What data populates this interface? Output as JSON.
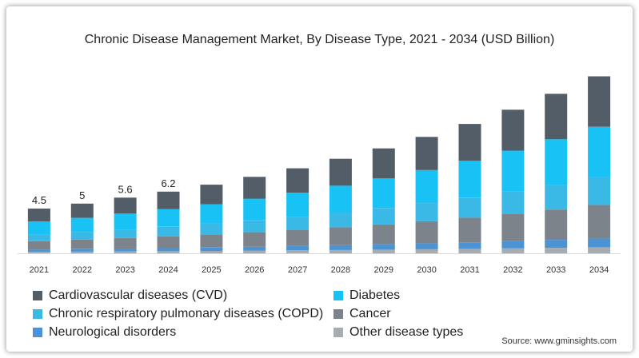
{
  "chart_data": {
    "type": "bar",
    "stacked": true,
    "title": "Chronic Disease Management Market, By Disease Type, 2021 - 2034 (USD Billion)",
    "categories": [
      "2021",
      "2022",
      "2023",
      "2024",
      "2025",
      "2026",
      "2027",
      "2028",
      "2029",
      "2030",
      "2031",
      "2032",
      "2033",
      "2034"
    ],
    "series": [
      {
        "name": "Other disease types",
        "color": "#a7acb1",
        "values": [
          0.15,
          0.17,
          0.19,
          0.21,
          0.24,
          0.27,
          0.3,
          0.33,
          0.37,
          0.41,
          0.45,
          0.5,
          0.55,
          0.61
        ]
      },
      {
        "name": "Neurological disorders",
        "color": "#4b93d3",
        "values": [
          0.22,
          0.25,
          0.28,
          0.31,
          0.35,
          0.39,
          0.44,
          0.49,
          0.54,
          0.6,
          0.66,
          0.73,
          0.81,
          0.89
        ]
      },
      {
        "name": "Cancer",
        "color": "#7d838b",
        "values": [
          0.85,
          0.95,
          1.06,
          1.18,
          1.31,
          1.46,
          1.62,
          1.8,
          2.0,
          2.22,
          2.47,
          2.74,
          3.04,
          3.37
        ]
      },
      {
        "name": "Chronic respiratory pulmonary diseases (COPD)",
        "color": "#3ab9e6",
        "values": [
          0.7,
          0.78,
          0.87,
          0.97,
          1.08,
          1.2,
          1.33,
          1.48,
          1.64,
          1.82,
          2.02,
          2.25,
          2.5,
          2.77
        ]
      },
      {
        "name": "Diabetes",
        "color": "#18c2f5",
        "values": [
          1.28,
          1.42,
          1.59,
          1.76,
          1.96,
          2.18,
          2.42,
          2.69,
          2.99,
          3.32,
          3.69,
          4.1,
          4.56,
          5.07
        ]
      },
      {
        "name": "Cardiovascular diseases (CVD)",
        "color": "#535d68",
        "values": [
          1.3,
          1.43,
          1.61,
          1.77,
          1.96,
          2.19,
          2.44,
          2.71,
          3.01,
          3.33,
          3.71,
          4.11,
          4.57,
          5.08
        ]
      }
    ],
    "value_labels": [
      {
        "category": "2021",
        "text": "4.5"
      },
      {
        "category": "2022",
        "text": "5"
      },
      {
        "category": "2023",
        "text": "5.6"
      },
      {
        "category": "2024",
        "text": "6.2"
      }
    ],
    "ylim": [
      0,
      20
    ],
    "grid": false,
    "legend_position": "bottom"
  },
  "legend": {
    "items": [
      {
        "label": "Cardiovascular diseases (CVD)",
        "color": "#535d68"
      },
      {
        "label": "Diabetes",
        "color": "#18c2f5"
      },
      {
        "label": "Chronic respiratory pulmonary diseases (COPD)",
        "color": "#3ab9e6"
      },
      {
        "label": "Cancer",
        "color": "#7d838b"
      },
      {
        "label": "Neurological disorders",
        "color": "#4b93d3"
      },
      {
        "label": "Other disease types",
        "color": "#a7acb1"
      }
    ]
  },
  "source": "Source: www.gminsights.com"
}
